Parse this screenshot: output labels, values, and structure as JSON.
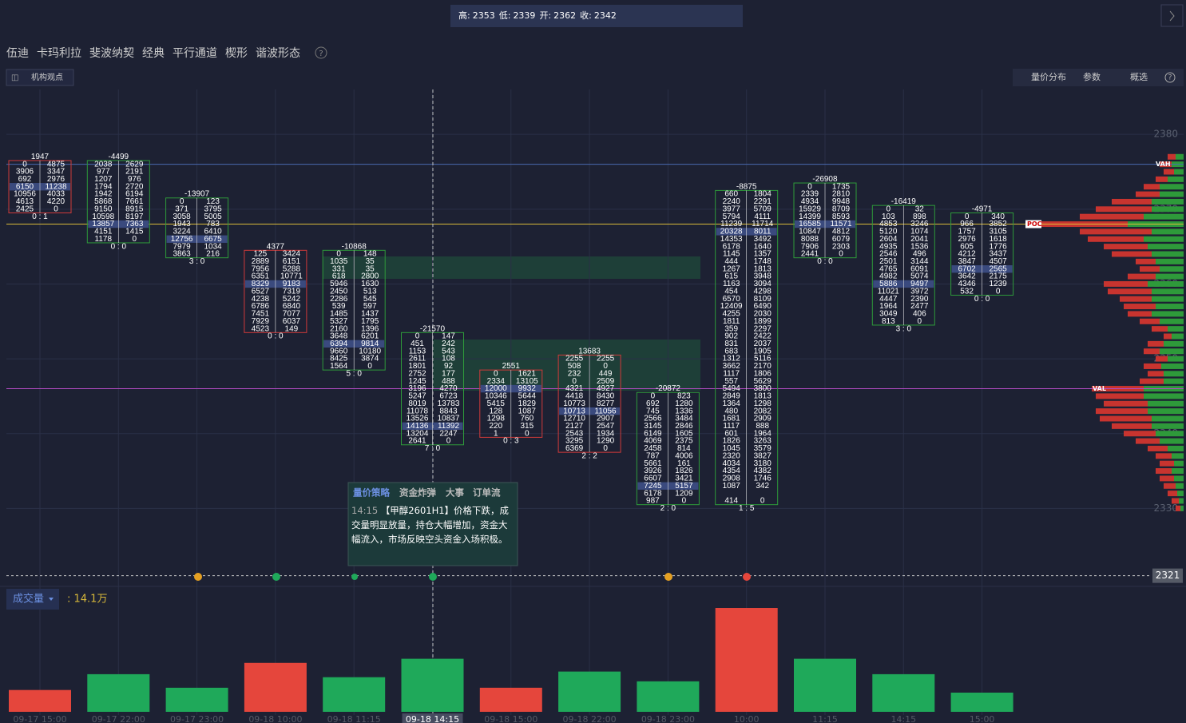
{
  "toolbar": {
    "ohlc": [
      {
        "label": "高:",
        "value": 2353
      },
      {
        "label": "低:",
        "value": 2339
      },
      {
        "label": "开:",
        "value": 2362
      },
      {
        "label": "收:",
        "value": 2342
      }
    ],
    "menu": [
      "伍迪",
      "卡玛利拉",
      "斐波纳契",
      "经典",
      "平行通道",
      "楔形",
      "谐波形态"
    ],
    "help": "?",
    "button": "机构观点",
    "right": [
      "量价分布",
      "参数",
      "概选"
    ]
  },
  "tooltip": {
    "tabs": [
      "量价策略",
      "资金炸弹",
      "大事",
      "订单流"
    ],
    "time": "14:15",
    "text": "【甲醇2601H1】价格下跌，成交量明显放量，持仓大幅增加，资金大幅流入，市场反映空头资金入场积极。"
  },
  "chart_data": [
    {
      "type": "footprint",
      "ylim": [
        2320,
        2386
      ],
      "yticks": [
        2330,
        2340,
        2350,
        2360,
        2370,
        2380
      ],
      "current_price": 2321,
      "value_area": {
        "vah": 2376,
        "poc": 2368,
        "val": 2346,
        "vah_label": "VAH",
        "poc_label": "POC",
        "val_label": "VAL"
      },
      "columns": [
        {
          "top": 2376,
          "delta": 1947,
          "ratio": "0 : 1",
          "poc_row": 3,
          "rows": [
            [
              0,
              4875
            ],
            [
              3906,
              3347
            ],
            [
              692,
              2976
            ],
            [
              6150,
              11238
            ],
            [
              10956,
              4033
            ],
            [
              4613,
              4220
            ],
            [
              2425,
              0
            ]
          ]
        },
        {
          "top": 2376,
          "delta": -4499,
          "ratio": "0 : 0",
          "poc_row": 8,
          "rows": [
            [
              2038,
              2629
            ],
            [
              977,
              2191
            ],
            [
              1207,
              976
            ],
            [
              1794,
              2720
            ],
            [
              1942,
              6194
            ],
            [
              5868,
              7661
            ],
            [
              9150,
              8915
            ],
            [
              10598,
              8197
            ],
            [
              13857,
              7363
            ],
            [
              4151,
              1415
            ],
            [
              1178,
              0
            ]
          ]
        },
        {
          "top": 2371,
          "delta": -13907,
          "ratio": "3 : 0",
          "poc_row": 5,
          "rows": [
            [
              0,
              123
            ],
            [
              371,
              3795
            ],
            [
              3058,
              5005
            ],
            [
              1943,
              783
            ],
            [
              3224,
              6410
            ],
            [
              12756,
              6675
            ],
            [
              7979,
              1034
            ],
            [
              3863,
              216
            ]
          ]
        },
        {
          "top": 2364,
          "delta": 4377,
          "ratio": "0 : 0",
          "poc_row": 4,
          "rows": [
            [
              125,
              3424
            ],
            [
              2889,
              6151
            ],
            [
              7956,
              5288
            ],
            [
              6351,
              10771
            ],
            [
              8329,
              9183
            ],
            [
              6527,
              7319
            ],
            [
              4238,
              5242
            ],
            [
              6786,
              6840
            ],
            [
              7451,
              7077
            ],
            [
              7929,
              6037
            ],
            [
              4523,
              149
            ]
          ]
        },
        {
          "top": 2364,
          "delta": -10868,
          "ratio": "5 : 0",
          "poc_row": 12,
          "rows": [
            [
              0,
              148
            ],
            [
              1035,
              35
            ],
            [
              331,
              35
            ],
            [
              618,
              2800
            ],
            [
              5946,
              1630
            ],
            [
              2450,
              513
            ],
            [
              2286,
              545
            ],
            [
              539,
              597
            ],
            [
              1485,
              1437
            ],
            [
              5327,
              1795
            ],
            [
              2160,
              1396
            ],
            [
              3648,
              6201
            ],
            [
              6394,
              9814
            ],
            [
              9660,
              10180
            ],
            [
              8425,
              3874
            ],
            [
              1564,
              0
            ]
          ]
        },
        {
          "top": 2353,
          "delta": -21570,
          "ratio": "7 : 0",
          "poc_row": 12,
          "rows": [
            [
              0,
              147
            ],
            [
              451,
              242
            ],
            [
              1153,
              543
            ],
            [
              2611,
              108
            ],
            [
              1801,
              92
            ],
            [
              2752,
              177
            ],
            [
              1245,
              488
            ],
            [
              3196,
              4270
            ],
            [
              5247,
              6723
            ],
            [
              8019,
              13783
            ],
            [
              11078,
              8843
            ],
            [
              13526,
              10837
            ],
            [
              14136,
              11392
            ],
            [
              13204,
              2247
            ],
            [
              2641,
              0
            ]
          ]
        },
        {
          "top": 2348,
          "delta": 2551,
          "ratio": "0 : 3",
          "poc_row": 2,
          "rows": [
            [
              0,
              1621
            ],
            [
              2334,
              13105
            ],
            [
              12000,
              9932
            ],
            [
              10346,
              5644
            ],
            [
              5415,
              1829
            ],
            [
              128,
              1087
            ],
            [
              1298,
              760
            ],
            [
              220,
              315
            ],
            [
              1,
              0
            ]
          ]
        },
        {
          "top": 2350,
          "delta": 13683,
          "ratio": "2 : 2",
          "poc_row": 7,
          "rows": [
            [
              2255,
              2255
            ],
            [
              508,
              0
            ],
            [
              232,
              449
            ],
            [
              0,
              2509
            ],
            [
              4321,
              4927
            ],
            [
              4418,
              8430
            ],
            [
              10773,
              8277
            ],
            [
              10713,
              11056
            ],
            [
              12710,
              2907
            ],
            [
              2127,
              2547
            ],
            [
              2543,
              1934
            ],
            [
              3295,
              1290
            ],
            [
              6369,
              0
            ]
          ]
        },
        {
          "top": 2345,
          "delta": -20872,
          "ratio": "2 : 0",
          "poc_row": 12,
          "rows": [
            [
              0,
              823
            ],
            [
              692,
              1280
            ],
            [
              745,
              1336
            ],
            [
              2566,
              3484
            ],
            [
              3145,
              2846
            ],
            [
              6149,
              1605
            ],
            [
              4069,
              2375
            ],
            [
              2458,
              814
            ],
            [
              787,
              4006
            ],
            [
              5661,
              161
            ],
            [
              3926,
              1826
            ],
            [
              6607,
              3421
            ],
            [
              7245,
              5157
            ],
            [
              6178,
              1209
            ],
            [
              987,
              0
            ]
          ]
        },
        {
          "top": 2372,
          "delta": -8875,
          "ratio": "1 : 5",
          "poc_row": 5,
          "rows": [
            [
              660,
              1804
            ],
            [
              2240,
              2291
            ],
            [
              3977,
              5709
            ],
            [
              5794,
              4111
            ],
            [
              11239,
              11714
            ],
            [
              20328,
              8011
            ],
            [
              14353,
              3492
            ],
            [
              6178,
              1640
            ],
            [
              1145,
              1357
            ],
            [
              444,
              1748
            ],
            [
              1267,
              1813
            ],
            [
              615,
              3948
            ],
            [
              1163,
              3094
            ],
            [
              454,
              4298
            ],
            [
              6570,
              8109
            ],
            [
              12409,
              6490
            ],
            [
              4255,
              2030
            ],
            [
              1811,
              1899
            ],
            [
              359,
              2297
            ],
            [
              902,
              2422
            ],
            [
              831,
              2037
            ],
            [
              683,
              1905
            ],
            [
              1312,
              5116
            ],
            [
              3662,
              2170
            ],
            [
              1117,
              1806
            ],
            [
              557,
              5629
            ],
            [
              5494,
              3800
            ],
            [
              2849,
              1813
            ],
            [
              1364,
              1298
            ],
            [
              480,
              2082
            ],
            [
              1681,
              2909
            ],
            [
              1117,
              888
            ],
            [
              601,
              1964
            ],
            [
              1826,
              3263
            ],
            [
              1045,
              3579
            ],
            [
              2320,
              3827
            ],
            [
              4034,
              3180
            ],
            [
              4354,
              4382
            ],
            [
              2908,
              1746
            ],
            [
              1087,
              342
            ],
            [
              null,
              null
            ],
            [
              414,
              0
            ]
          ]
        },
        {
          "top": 2373,
          "delta": -26908,
          "ratio": "0 : 0",
          "poc_row": 5,
          "rows": [
            [
              0,
              1735
            ],
            [
              2339,
              2810
            ],
            [
              4934,
              9948
            ],
            [
              15929,
              8709
            ],
            [
              14399,
              8593
            ],
            [
              16585,
              11571
            ],
            [
              10847,
              4812
            ],
            [
              8088,
              6079
            ],
            [
              7906,
              2303
            ],
            [
              2441,
              0
            ]
          ]
        },
        {
          "top": 2370,
          "delta": -16419,
          "ratio": "3 : 0",
          "poc_row": 10,
          "rows": [
            [
              0,
              32
            ],
            [
              103,
              898
            ],
            [
              4853,
              3246
            ],
            [
              5120,
              1074
            ],
            [
              2604,
              2041
            ],
            [
              4935,
              1536
            ],
            [
              2546,
              496
            ],
            [
              2501,
              3144
            ],
            [
              4765,
              6091
            ],
            [
              4982,
              5074
            ],
            [
              5886,
              9497
            ],
            [
              11021,
              3972
            ],
            [
              4447,
              2390
            ],
            [
              1964,
              2477
            ],
            [
              3049,
              406
            ],
            [
              813,
              0
            ]
          ]
        },
        {
          "top": 2369,
          "delta": -4971,
          "ratio": "0 : 0",
          "poc_row": 7,
          "rows": [
            [
              0,
              340
            ],
            [
              966,
              3852
            ],
            [
              1757,
              3105
            ],
            [
              2976,
              1618
            ],
            [
              605,
              1776
            ],
            [
              4212,
              3437
            ],
            [
              3847,
              4507
            ],
            [
              6702,
              2565
            ],
            [
              3642,
              2175
            ],
            [
              4346,
              1239
            ],
            [
              532,
              0
            ]
          ]
        }
      ],
      "profile": {
        "top": 2377,
        "buy_color": "#2e9a3a",
        "sell_color": "#c8342f",
        "buy": [
          10,
          15,
          12,
          20,
          30,
          30,
          40,
          40,
          50,
          70,
          40,
          50,
          45,
          40,
          35,
          30,
          35,
          45,
          40,
          40,
          35,
          40,
          30,
          20,
          15,
          25,
          30,
          20,
          28,
          25,
          25,
          50,
          50,
          45,
          45,
          40,
          40,
          35,
          30,
          20,
          15,
          12,
          15,
          12,
          10,
          8,
          6,
          4
        ],
        "sell": [
          10,
          15,
          13,
          15,
          20,
          30,
          50,
          70,
          80,
          125,
          90,
          70,
          55,
          50,
          25,
          25,
          35,
          55,
          55,
          40,
          40,
          30,
          25,
          20,
          10,
          20,
          20,
          15,
          22,
          20,
          30,
          65,
          60,
          55,
          65,
          65,
          50,
          40,
          30,
          25,
          20,
          18,
          20,
          18,
          15,
          12,
          9,
          6
        ]
      }
    },
    {
      "type": "bar",
      "title": "成交量",
      "value_label": ": 14.1万",
      "ylim": [
        0,
        31
      ],
      "categories": [
        "09-17 15:00",
        "09-17 22:00",
        "09-17 23:00",
        "09-18 10:00",
        "09-18 11:15",
        "09-18 14:15",
        "09-18 15:00",
        "09-18 22:00",
        "09-18 23:00",
        "10:00",
        "11:15",
        "14:15",
        "15:00"
      ],
      "values": [
        5.8,
        10.0,
        6.4,
        13.0,
        9.2,
        14.1,
        6.4,
        10.7,
        8.1,
        27.6,
        14.1,
        10.0,
        5.1
      ],
      "colors": [
        "#e5463c",
        "#1fa95a",
        "#1fa95a",
        "#e5463c",
        "#1fa95a",
        "#1fa95a",
        "#e5463c",
        "#1fa95a",
        "#1fa95a",
        "#e5463c",
        "#1fa95a",
        "#1fa95a",
        "#1fa95a"
      ],
      "selected": 5
    }
  ]
}
